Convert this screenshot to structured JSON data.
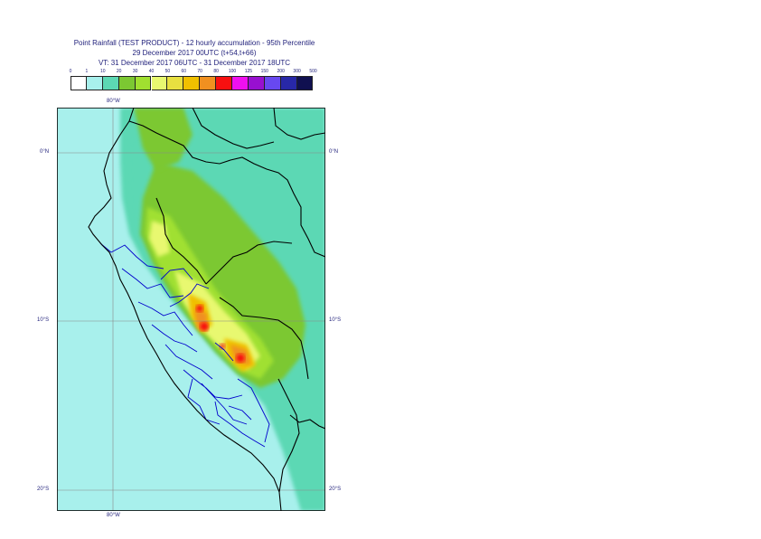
{
  "title": {
    "line1": "Point Rainfall (TEST PRODUCT) - 12 hourly accumulation - 95th Percentile",
    "line2": "29 December 2017 00UTC (t+54,t+66)",
    "line3": "VT: 31 December 2017 06UTC - 31 December 2017 18UTC"
  },
  "legend": {
    "ticks": [
      "0",
      "1",
      "10",
      "20",
      "30",
      "40",
      "50",
      "60",
      "70",
      "80",
      "100",
      "125",
      "150",
      "200",
      "300",
      "500"
    ],
    "colors": [
      "#ffffff",
      "#a8f0ec",
      "#5cd8b4",
      "#7cc832",
      "#a0e030",
      "#e8f870",
      "#e8e040",
      "#f0c000",
      "#f09020",
      "#f81010",
      "#f010f0",
      "#9810d0",
      "#6848f0",
      "#2828a8",
      "#101050"
    ]
  },
  "map": {
    "lon_top": "80°W",
    "lon_bottom": "80°W",
    "lat_labels": [
      "0°N",
      "10°S",
      "20°S"
    ],
    "colors": {
      "background": "#a8f0ec",
      "medium": "#5cd8b4",
      "light_green": "#7cc832",
      "green": "#a0e030",
      "yellow": "#e8f870",
      "orange": "#f09020",
      "red": "#f81010",
      "border_country": "#000000",
      "border_region": "#0000cc",
      "grid": "#888888"
    }
  }
}
